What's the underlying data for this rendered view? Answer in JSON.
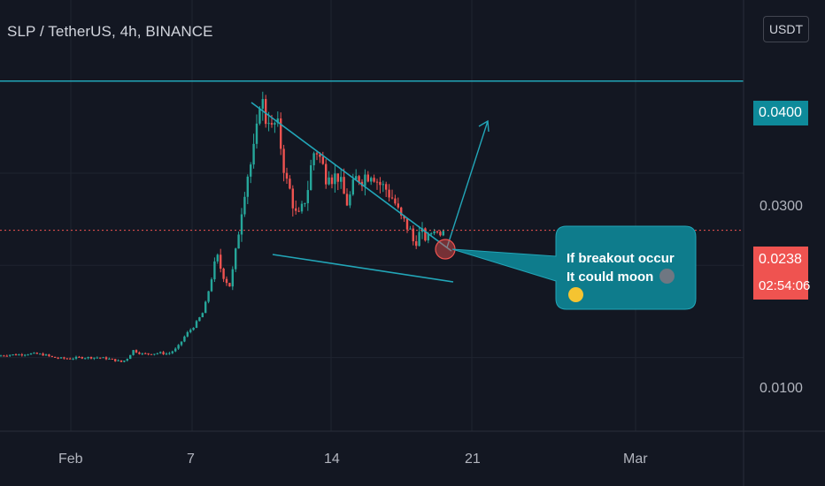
{
  "header": {
    "title": "SLP / TetherUS, 4h, BINANCE",
    "currency_button": "USDT"
  },
  "price_axis": {
    "ticks": [
      "0.0100",
      "0.0300"
    ],
    "level_label": "0.0400",
    "last_price_label": "0.0238",
    "countdown_label": "02:54:06"
  },
  "time_axis": {
    "ticks": [
      "Feb",
      "7",
      "14",
      "21",
      "Mar"
    ]
  },
  "annotation": {
    "line1": "If breakout occur",
    "line2": "It could moon",
    "icons": [
      "skull-emoji-icon",
      "smile-emoji-icon"
    ]
  },
  "colors": {
    "background": "#131722",
    "up": "#26a69a",
    "down": "#ef5350",
    "drawing": "#22a6b8",
    "callout": "#0e7c8c"
  },
  "chart_data": {
    "type": "candlestick",
    "symbol": "SLP / TetherUS",
    "interval": "4h",
    "exchange": "BINANCE",
    "ylim": [
      0.002,
      0.0488
    ],
    "y_ticks": [
      0.01,
      0.03
    ],
    "x_ticks": [
      "Feb",
      "7",
      "14",
      "21",
      "Mar"
    ],
    "grid": true,
    "horizontal_level": 0.04,
    "last_price": 0.0238,
    "close_path": [
      [
        0,
        0.0102
      ],
      [
        10,
        0.0103
      ],
      [
        20,
        0.0103
      ],
      [
        30,
        0.0104
      ],
      [
        40,
        0.0104
      ],
      [
        50,
        0.0103
      ],
      [
        60,
        0.01
      ],
      [
        70,
        0.0099
      ],
      [
        80,
        0.0099
      ],
      [
        90,
        0.01
      ],
      [
        100,
        0.01
      ],
      [
        110,
        0.01
      ],
      [
        120,
        0.0099
      ],
      [
        130,
        0.0097
      ],
      [
        138,
        0.0095
      ],
      [
        145,
        0.01
      ],
      [
        150,
        0.0108
      ],
      [
        160,
        0.0104
      ],
      [
        170,
        0.0104
      ],
      [
        180,
        0.0105
      ],
      [
        190,
        0.0104
      ],
      [
        200,
        0.011
      ],
      [
        210,
        0.0125
      ],
      [
        220,
        0.0135
      ],
      [
        230,
        0.015
      ],
      [
        240,
        0.019
      ],
      [
        245,
        0.021
      ],
      [
        250,
        0.0195
      ],
      [
        255,
        0.0185
      ],
      [
        260,
        0.0178
      ],
      [
        265,
        0.0205
      ],
      [
        270,
        0.024
      ],
      [
        275,
        0.0275
      ],
      [
        280,
        0.03
      ],
      [
        285,
        0.0315
      ],
      [
        290,
        0.0345
      ],
      [
        294,
        0.0385
      ],
      [
        297,
        0.0375
      ],
      [
        300,
        0.0358
      ],
      [
        304,
        0.0362
      ],
      [
        308,
        0.0342
      ],
      [
        312,
        0.036
      ],
      [
        316,
        0.0338
      ],
      [
        320,
        0.031
      ],
      [
        324,
        0.029
      ],
      [
        328,
        0.028
      ],
      [
        332,
        0.0262
      ],
      [
        336,
        0.025
      ],
      [
        340,
        0.0258
      ],
      [
        344,
        0.027
      ],
      [
        348,
        0.0285
      ],
      [
        352,
        0.0312
      ],
      [
        356,
        0.0328
      ],
      [
        360,
        0.032
      ],
      [
        364,
        0.031
      ],
      [
        368,
        0.0296
      ],
      [
        372,
        0.0305
      ],
      [
        376,
        0.0292
      ],
      [
        380,
        0.03
      ],
      [
        384,
        0.0292
      ],
      [
        388,
        0.0278
      ],
      [
        392,
        0.0268
      ],
      [
        396,
        0.0276
      ],
      [
        400,
        0.029
      ],
      [
        404,
        0.0297
      ],
      [
        408,
        0.0292
      ],
      [
        412,
        0.0298
      ],
      [
        416,
        0.0298
      ],
      [
        420,
        0.0302
      ],
      [
        424,
        0.0295
      ],
      [
        428,
        0.0289
      ],
      [
        432,
        0.0286
      ],
      [
        436,
        0.0283
      ],
      [
        440,
        0.0277
      ],
      [
        444,
        0.0272
      ],
      [
        448,
        0.0264
      ],
      [
        452,
        0.0252
      ],
      [
        456,
        0.0248
      ],
      [
        460,
        0.0242
      ],
      [
        464,
        0.0236
      ],
      [
        468,
        0.0222
      ],
      [
        472,
        0.0232
      ],
      [
        476,
        0.0236
      ],
      [
        480,
        0.0228
      ],
      [
        484,
        0.0232
      ],
      [
        488,
        0.0236
      ],
      [
        492,
        0.024
      ],
      [
        496,
        0.0232
      ],
      [
        500,
        0.024
      ],
      [
        504,
        0.0238
      ]
    ]
  }
}
